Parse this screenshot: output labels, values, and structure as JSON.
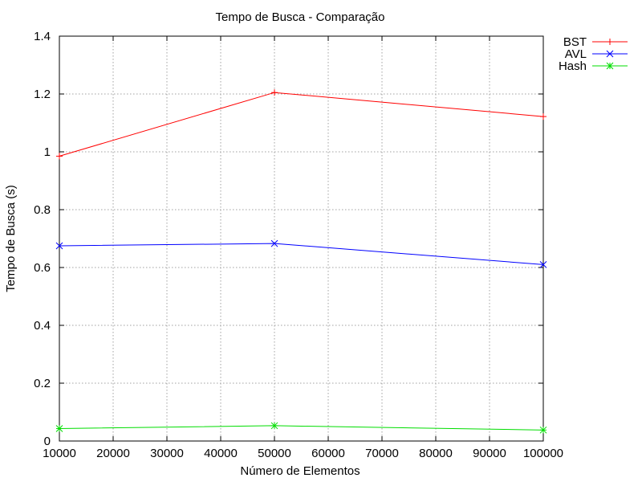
{
  "chart_data": {
    "type": "line",
    "title": "Tempo de Busca - Comparação",
    "xlabel": "Número de Elementos",
    "ylabel": "Tempo de Busca (s)",
    "x": [
      10000,
      50000,
      100000
    ],
    "xlim": [
      10000,
      100000
    ],
    "ylim": [
      0,
      1.4
    ],
    "xticks": [
      10000,
      20000,
      30000,
      40000,
      50000,
      60000,
      70000,
      80000,
      90000,
      100000
    ],
    "xtick_labels": [
      "10000",
      "20000",
      "30000",
      "40000",
      "50000",
      "60000",
      "70000",
      "80000",
      "90000",
      "100000"
    ],
    "yticks": [
      0,
      0.2,
      0.4,
      0.6,
      0.8,
      1,
      1.2,
      1.4
    ],
    "ytick_labels": [
      "0",
      "0.2",
      "0.4",
      "0.6",
      "0.8",
      "1",
      "1.2",
      "1.4"
    ],
    "grid": true,
    "legend_position": "top-right outside",
    "series": [
      {
        "name": "BST",
        "values": [
          0.985,
          1.205,
          1.122
        ],
        "color": "#ff0000",
        "marker": "plus"
      },
      {
        "name": "AVL",
        "values": [
          0.675,
          0.683,
          0.61
        ],
        "color": "#0000ff",
        "marker": "cross"
      },
      {
        "name": "Hash",
        "values": [
          0.043,
          0.053,
          0.038
        ],
        "color": "#00dd00",
        "marker": "star"
      }
    ]
  }
}
